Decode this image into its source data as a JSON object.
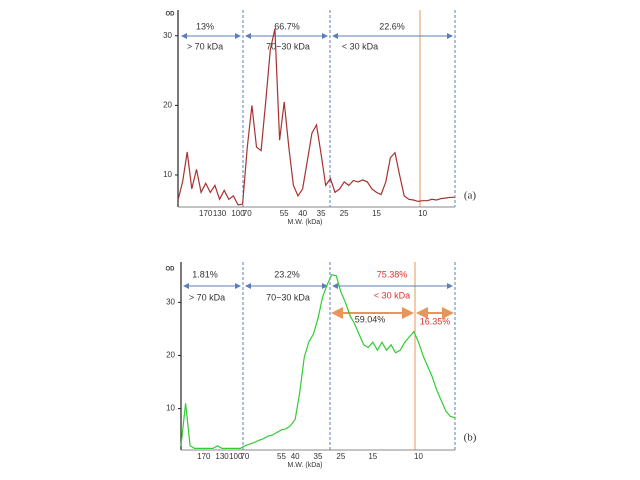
{
  "chart_data": [
    {
      "type": "line",
      "panel_label": "(a)",
      "y_label": "OD",
      "x_label": "M.W. (kDa)",
      "color": "#a83232",
      "categories": [
        null,
        null,
        null,
        null,
        null,
        null,
        "170",
        null,
        null,
        "130",
        null,
        null,
        null,
        "100",
        null,
        "70",
        null,
        null,
        null,
        null,
        null,
        null,
        null,
        "55",
        null,
        null,
        null,
        "40",
        null,
        null,
        null,
        "35",
        null,
        null,
        null,
        null,
        "25",
        null,
        null,
        null,
        null,
        null,
        null,
        "15",
        null,
        null,
        null,
        null,
        null,
        null,
        null,
        null,
        null,
        "10",
        null,
        null,
        null,
        null,
        null,
        null,
        null
      ],
      "values": [
        6.4,
        9,
        13.3,
        8,
        10.8,
        7.5,
        8.8,
        7.5,
        8.5,
        6.5,
        7.8,
        6.5,
        7,
        5.7,
        5.8,
        14,
        20,
        14,
        13.5,
        20.5,
        28,
        31,
        15,
        20.5,
        14,
        8.5,
        7,
        8,
        12,
        16,
        17.2,
        13,
        8.5,
        9.5,
        7.5,
        8,
        9,
        8.5,
        9.2,
        9,
        9.3,
        9,
        8,
        7.5,
        7.2,
        9,
        12.5,
        13.2,
        10,
        7,
        6.5,
        6.4,
        6.2,
        6.3,
        6.3,
        6.5,
        6.4,
        6.6,
        6.7,
        6.8,
        6.8
      ],
      "ylim": [
        5.4,
        33.7
      ],
      "yticks": [
        10,
        20,
        30
      ],
      "annotations": [
        "13%",
        "66.7%",
        "22.6%",
        "> 70 kDa",
        "70~30 kDa",
        "< 30 kDa"
      ]
    },
    {
      "type": "line",
      "panel_label": "(b)",
      "y_label": "OD",
      "x_label": "M.W. (kDa)",
      "color": "#33cc33",
      "categories": [
        null,
        null,
        null,
        null,
        null,
        "170",
        null,
        null,
        null,
        "130",
        null,
        null,
        "100",
        null,
        "70",
        null,
        null,
        null,
        null,
        null,
        null,
        null,
        "55",
        null,
        null,
        "40",
        null,
        null,
        null,
        null,
        "35",
        null,
        null,
        null,
        null,
        "25",
        null,
        null,
        null,
        null,
        null,
        null,
        "15",
        null,
        null,
        null,
        null,
        null,
        null,
        null,
        null,
        null,
        "10",
        null,
        null,
        null,
        null,
        null,
        null,
        null,
        null
      ],
      "values": [
        3,
        11,
        3,
        2.5,
        2.5,
        2.5,
        2.5,
        2.5,
        3,
        2.5,
        2.5,
        2.5,
        2.5,
        2.5,
        3,
        3.3,
        3.6,
        4,
        4.3,
        4.8,
        5,
        5.5,
        6,
        6.2,
        6.8,
        8,
        13,
        19.7,
        22.6,
        24,
        27,
        31,
        33.3,
        35.2,
        35,
        32,
        30,
        27.5,
        26,
        24,
        22,
        21.5,
        22.5,
        21,
        22.5,
        21,
        22,
        20.5,
        21,
        22.5,
        23.5,
        24.5,
        22.5,
        20,
        18,
        16,
        13.5,
        11.5,
        9.5,
        8.5,
        8.3
      ],
      "ylim": [
        2.2,
        37.6
      ],
      "yticks": [
        10,
        20,
        30
      ],
      "annotations": [
        "1.81%",
        "23.2%",
        "75.38%",
        "> 70 kDa",
        "70~30 kDa",
        "< 30 kDa",
        "59.04%",
        "16.35%"
      ]
    }
  ]
}
